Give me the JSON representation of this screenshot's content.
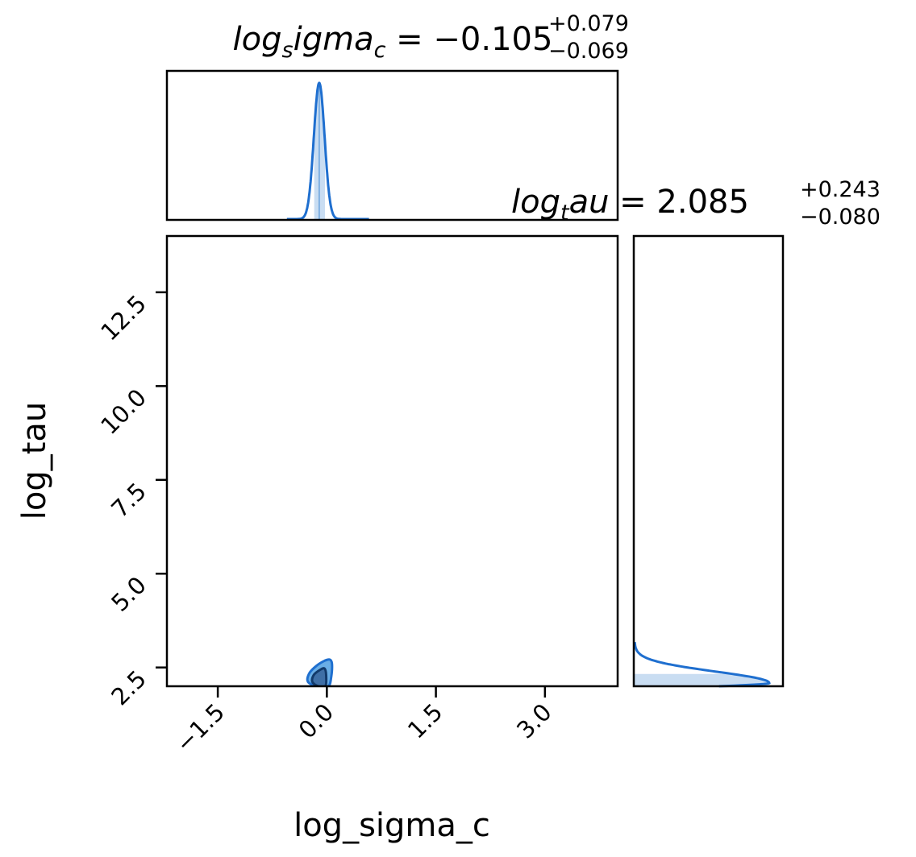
{
  "chart_data": {
    "type": "corner",
    "colors": {
      "line": "#1f6fcf",
      "fill_light": "#c9ddf2",
      "contour_outer": "#6aaee6",
      "contour_inner": "#3f6fa6",
      "contour_inner_edge": "#123a6b",
      "frame": "#000000"
    },
    "params": [
      "log_sigma_c",
      "log_tau"
    ],
    "marginal_x": {
      "param": "log_sigma_c",
      "title": {
        "prefix": "log",
        "sub1": "s",
        "mid": "igma",
        "sub2": "c",
        "eq": " = −0.105",
        "plus": "+0.079",
        "minus": "−0.069"
      },
      "median": -0.105,
      "err_plus": 0.079,
      "err_minus": 0.069,
      "xlim": [
        -2.2,
        4.0
      ]
    },
    "marginal_y": {
      "param": "log_tau",
      "title": {
        "prefix": "log",
        "sub1": "t",
        "mid": "au",
        "eq": " = 2.085",
        "plus": "+0.243",
        "minus": "−0.080"
      },
      "median": 2.085,
      "err_plus": 0.243,
      "err_minus": 0.08,
      "ylim": [
        2.0,
        14.0
      ]
    },
    "joint": {
      "xlabel": "log_sigma_c",
      "ylabel": "log_tau",
      "xlim": [
        -2.2,
        4.0
      ],
      "ylim": [
        2.0,
        14.0
      ],
      "xticks": [
        -1.5,
        0.0,
        1.5,
        3.0
      ],
      "xtick_labels": [
        "−1.5",
        "0.0",
        "1.5",
        "3.0"
      ],
      "yticks": [
        2.5,
        5.0,
        7.5,
        10.0,
        12.5
      ],
      "ytick_labels": [
        "2.5",
        "5.0",
        "7.5",
        "10.0",
        "12.5"
      ],
      "contours": [
        {
          "level": "outer",
          "points": [
            [
              -0.13,
              2.0
            ],
            [
              -0.26,
              2.12
            ],
            [
              -0.24,
              2.35
            ],
            [
              -0.14,
              2.55
            ],
            [
              -0.03,
              2.68
            ],
            [
              0.04,
              2.71
            ],
            [
              0.07,
              2.6
            ],
            [
              0.06,
              2.25
            ],
            [
              0.02,
              2.0
            ]
          ]
        },
        {
          "level": "inner",
          "points": [
            [
              -0.12,
              2.0
            ],
            [
              -0.2,
              2.12
            ],
            [
              -0.18,
              2.3
            ],
            [
              -0.09,
              2.44
            ],
            [
              -0.03,
              2.47
            ],
            [
              -0.01,
              2.3
            ],
            [
              -0.02,
              2.0
            ]
          ]
        }
      ]
    }
  }
}
